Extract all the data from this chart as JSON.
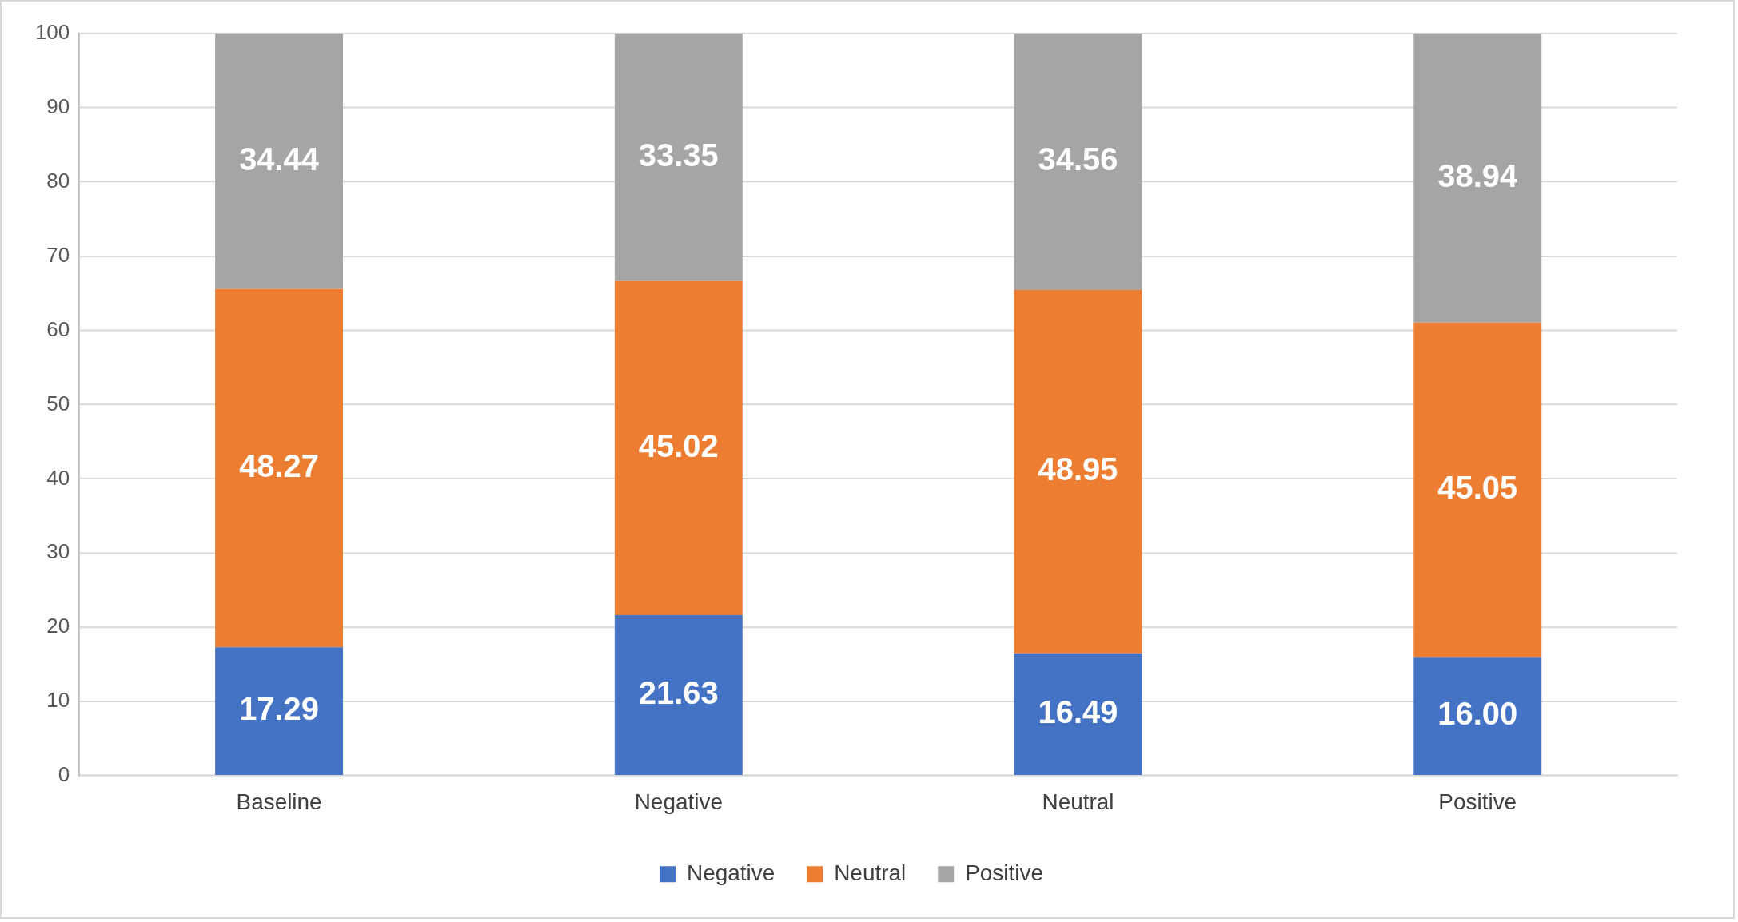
{
  "chart_data": {
    "type": "bar",
    "stacked": true,
    "categories": [
      "Baseline",
      "Negative",
      "Neutral",
      "Positive"
    ],
    "series": [
      {
        "name": "Negative",
        "color": "#4472c4",
        "values": [
          17.29,
          21.63,
          16.49,
          16.0
        ],
        "value_labels": [
          "17.29",
          "21.63",
          "16.49",
          "16.00"
        ]
      },
      {
        "name": "Neutral",
        "color": "#ed7d31",
        "values": [
          48.27,
          45.02,
          48.95,
          45.05
        ],
        "value_labels": [
          "48.27",
          "45.02",
          "48.95",
          "45.05"
        ]
      },
      {
        "name": "Positive",
        "color": "#a5a5a5",
        "values": [
          34.44,
          33.35,
          34.56,
          38.94
        ],
        "value_labels": [
          "34.44",
          "33.35",
          "34.56",
          "38.94"
        ]
      }
    ],
    "ylim": [
      0,
      100
    ],
    "yticks": [
      0,
      10,
      20,
      30,
      40,
      50,
      60,
      70,
      80,
      90,
      100
    ],
    "grid": "y",
    "legend": "bottom"
  }
}
